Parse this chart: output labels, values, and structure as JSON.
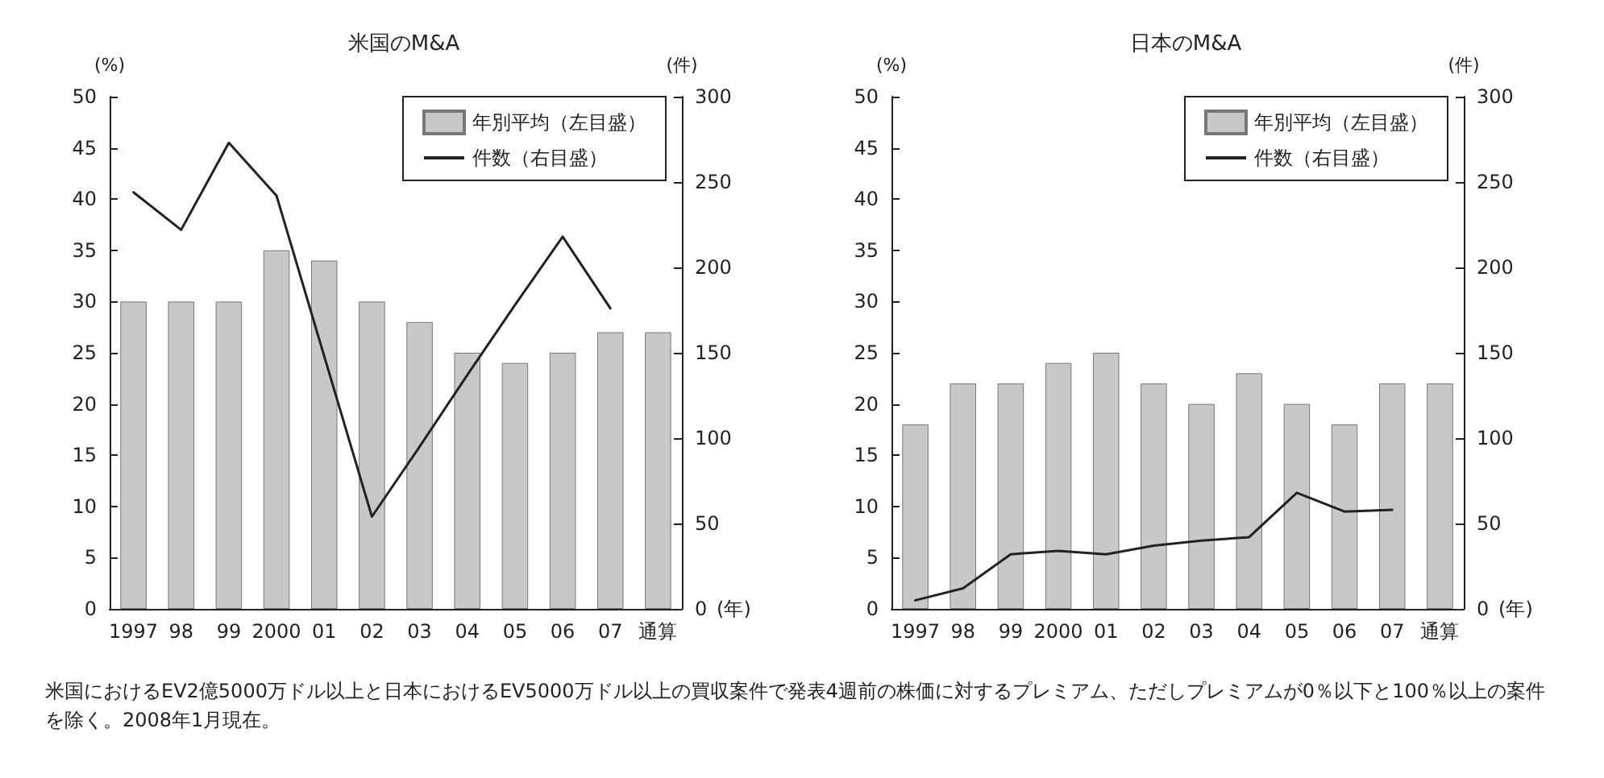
{
  "chart_data": [
    {
      "type": "bar",
      "title": "米国のM&A",
      "categories": [
        "1997",
        "98",
        "99",
        "2000",
        "01",
        "02",
        "03",
        "04",
        "05",
        "06",
        "07",
        "通算"
      ],
      "series": [
        {
          "name": "年別平均（左目盛）",
          "color": "#c8c8c8",
          "values": [
            30,
            30,
            30,
            35,
            34,
            30,
            28,
            25,
            24,
            25,
            27,
            27
          ]
        },
        {
          "name": "件数（右目盛）",
          "type": "line",
          "axis": "y2",
          "color": "#222222",
          "values": [
            244,
            222,
            273,
            242,
            148,
            54,
            95,
            137,
            178,
            218,
            176,
            null
          ]
        }
      ],
      "ylabel": "(%)",
      "y2label": "(件)",
      "xlabel": "(年)",
      "ylim": [
        0,
        50
      ],
      "yticks": [
        0,
        5,
        10,
        15,
        20,
        25,
        30,
        35,
        40,
        45,
        50
      ],
      "y2lim": [
        0,
        300
      ],
      "y2ticks": [
        0,
        50,
        100,
        150,
        200,
        250,
        300
      ],
      "grid": false,
      "legend": "top right",
      "marker": "none",
      "annotations": [
        "米国におけるEV2億5000万ドル以上と日本におけるEV5000万ドル以上の買収案件で発表4週前の株価に対するプレミアム、ただしプレミアムが0％以下と100％以上の案件を除く。2008年1月現在。"
      ]
    },
    {
      "type": "bar",
      "title": "日本のM&A",
      "categories": [
        "1997",
        "98",
        "99",
        "2000",
        "01",
        "02",
        "03",
        "04",
        "05",
        "06",
        "07",
        "通算"
      ],
      "series": [
        {
          "name": "年別平均（左目盛）",
          "color": "#c8c8c8",
          "values": [
            18,
            22,
            22,
            24,
            25,
            22,
            20,
            23,
            20,
            18,
            22,
            22
          ]
        },
        {
          "name": "件数（右目盛）",
          "type": "line",
          "axis": "y2",
          "color": "#222222",
          "values": [
            5,
            12,
            32,
            34,
            32,
            37,
            40,
            42,
            68,
            57,
            58,
            null
          ]
        }
      ],
      "ylabel": "(%)",
      "y2label": "(件)",
      "xlabel": "(年)",
      "ylim": [
        0,
        50
      ],
      "yticks": [
        0,
        5,
        10,
        15,
        20,
        25,
        30,
        35,
        40,
        45,
        50
      ],
      "y2lim": [
        0,
        300
      ],
      "y2ticks": [
        0,
        50,
        100,
        150,
        200,
        250,
        300
      ],
      "grid": false,
      "legend": "top right",
      "marker": "none"
    }
  ]
}
